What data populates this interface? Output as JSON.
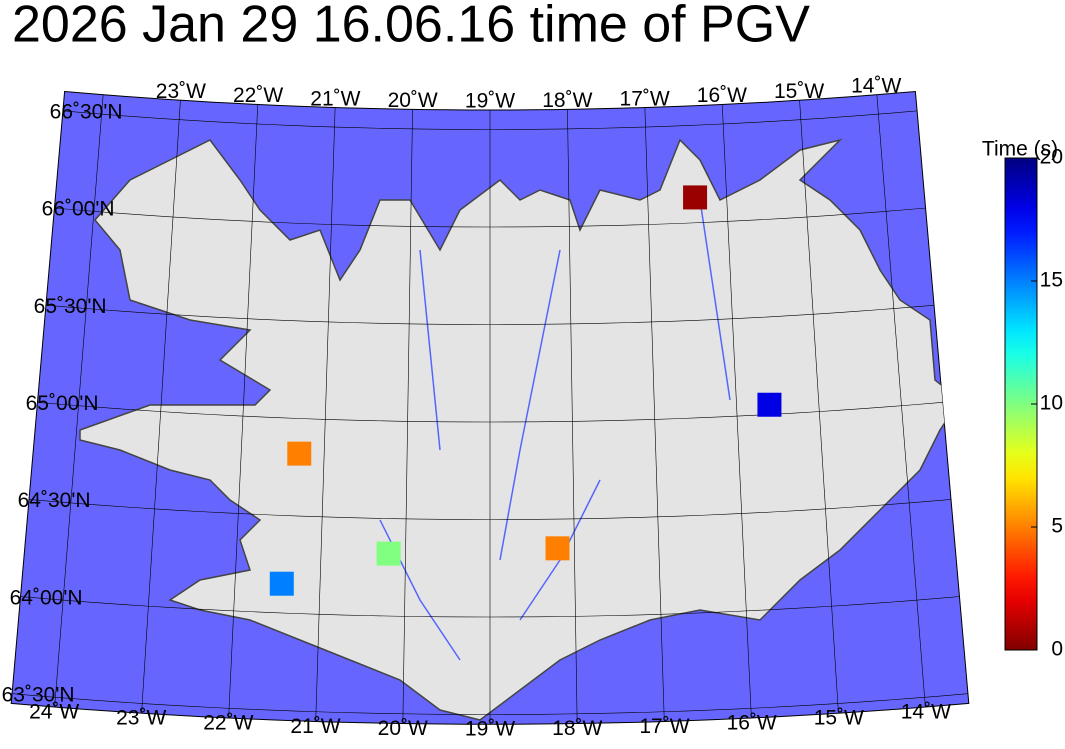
{
  "map": {
    "title": "2026 Jan 29 16.06.16 time of PGV",
    "lon_labels_top": [
      {
        "value": -23,
        "label": "23˚W"
      },
      {
        "value": -22,
        "label": "22˚W"
      },
      {
        "value": -21,
        "label": "21˚W"
      },
      {
        "value": -20,
        "label": "20˚W"
      },
      {
        "value": -19,
        "label": "19˚W"
      },
      {
        "value": -18,
        "label": "18˚W"
      },
      {
        "value": -17,
        "label": "17˚W"
      },
      {
        "value": -16,
        "label": "16˚W"
      },
      {
        "value": -15,
        "label": "15˚W"
      },
      {
        "value": -14,
        "label": "14˚W"
      }
    ],
    "lon_labels_bottom": [
      {
        "value": -24,
        "label": "24˚W"
      },
      {
        "value": -23,
        "label": "23˚W"
      },
      {
        "value": -22,
        "label": "22˚W"
      },
      {
        "value": -21,
        "label": "21˚W"
      },
      {
        "value": -20,
        "label": "20˚W"
      },
      {
        "value": -19,
        "label": "19˚W"
      },
      {
        "value": -18,
        "label": "18˚W"
      },
      {
        "value": -17,
        "label": "17˚W"
      },
      {
        "value": -16,
        "label": "16˚W"
      },
      {
        "value": -15,
        "label": "15˚W"
      },
      {
        "value": -14,
        "label": "14˚W"
      }
    ],
    "lat_labels": [
      {
        "value": 66.5,
        "label": "66˚30'N"
      },
      {
        "value": 66,
        "label": "66˚00'N"
      },
      {
        "value": 65.5,
        "label": "65˚30'N"
      },
      {
        "value": 65,
        "label": "65˚00'N"
      },
      {
        "value": 64.5,
        "label": "64˚30'N"
      },
      {
        "value": 64,
        "label": "64˚00'N"
      },
      {
        "value": 63.5,
        "label": "63˚30'N"
      }
    ],
    "stations": [
      {
        "lon": -16.4,
        "lat": 66.13,
        "time": 0.5
      },
      {
        "lon": -15.6,
        "lat": 65.05,
        "time": 18
      },
      {
        "lon": -21.3,
        "lat": 64.82,
        "time": 5
      },
      {
        "lon": -20.2,
        "lat": 64.32,
        "time": 10
      },
      {
        "lon": -18.2,
        "lat": 64.35,
        "time": 5
      },
      {
        "lon": -21.45,
        "lat": 64.15,
        "time": 15
      }
    ],
    "colorbar": {
      "label": "Time (s)",
      "clim": [
        0,
        20
      ],
      "ticks": [
        0,
        5,
        10,
        15,
        20
      ]
    }
  }
}
